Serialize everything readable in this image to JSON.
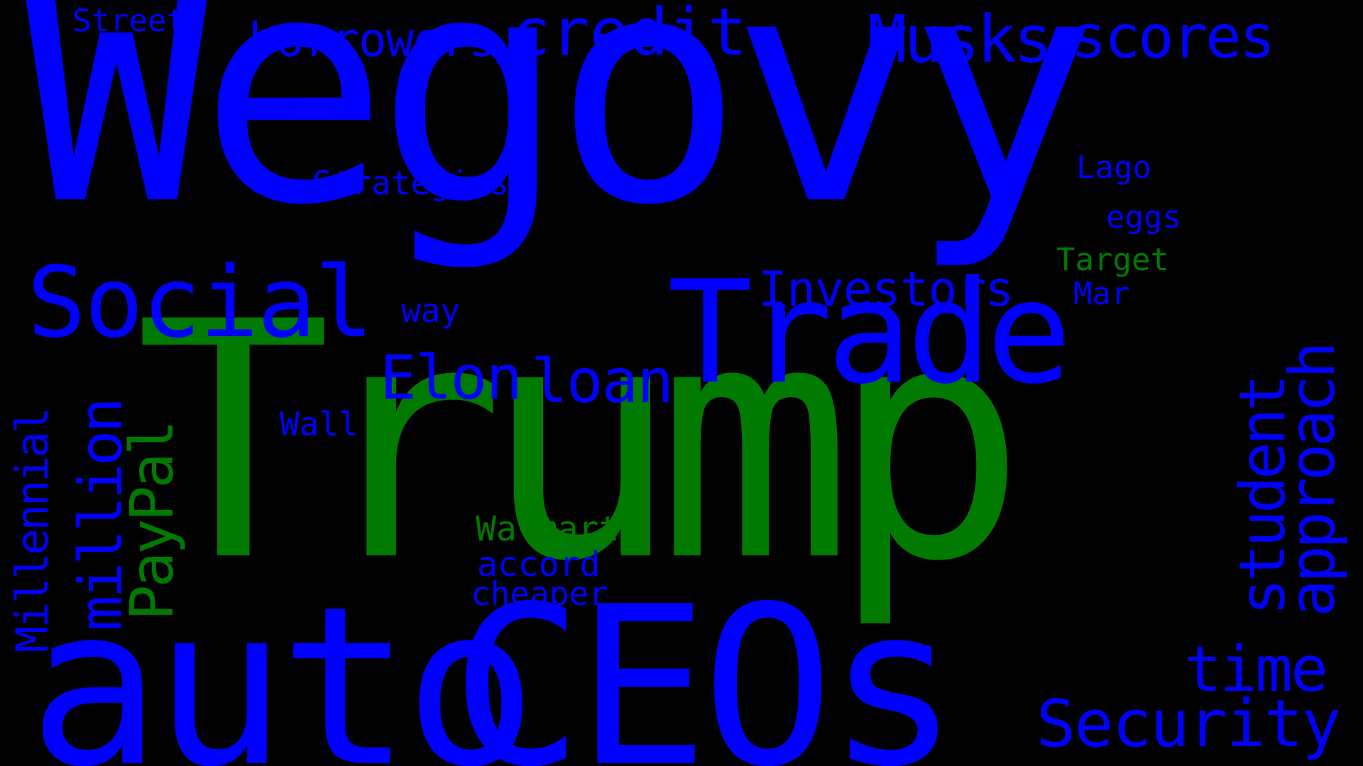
{
  "colors": {
    "background": "#000000",
    "blue": "#0000ff",
    "green": "#007a00"
  },
  "words": {
    "wegovy": "Wegovy",
    "trump": "Trump",
    "auto": "auto",
    "ceos": "CEOs",
    "trade": "Trade",
    "social": "Social",
    "security": "Security",
    "credit": "credit",
    "borrowers": "borrowers",
    "street": "Street",
    "musks": "Musks",
    "scores": "scores",
    "strategies": "Strategies",
    "investors": "Investors",
    "elon": "Elon",
    "loan": "loan",
    "way": "way",
    "wall": "Wall",
    "lago": "Lago",
    "eggs": "eggs",
    "target": "Target",
    "mar": "Mar",
    "walmart": "Walmart",
    "accord": "accord",
    "cheaper": "cheaper",
    "time": "time",
    "millennial": "Millennial",
    "million": "million",
    "paypal": "PayPal",
    "student": "student",
    "approach": "approach"
  }
}
